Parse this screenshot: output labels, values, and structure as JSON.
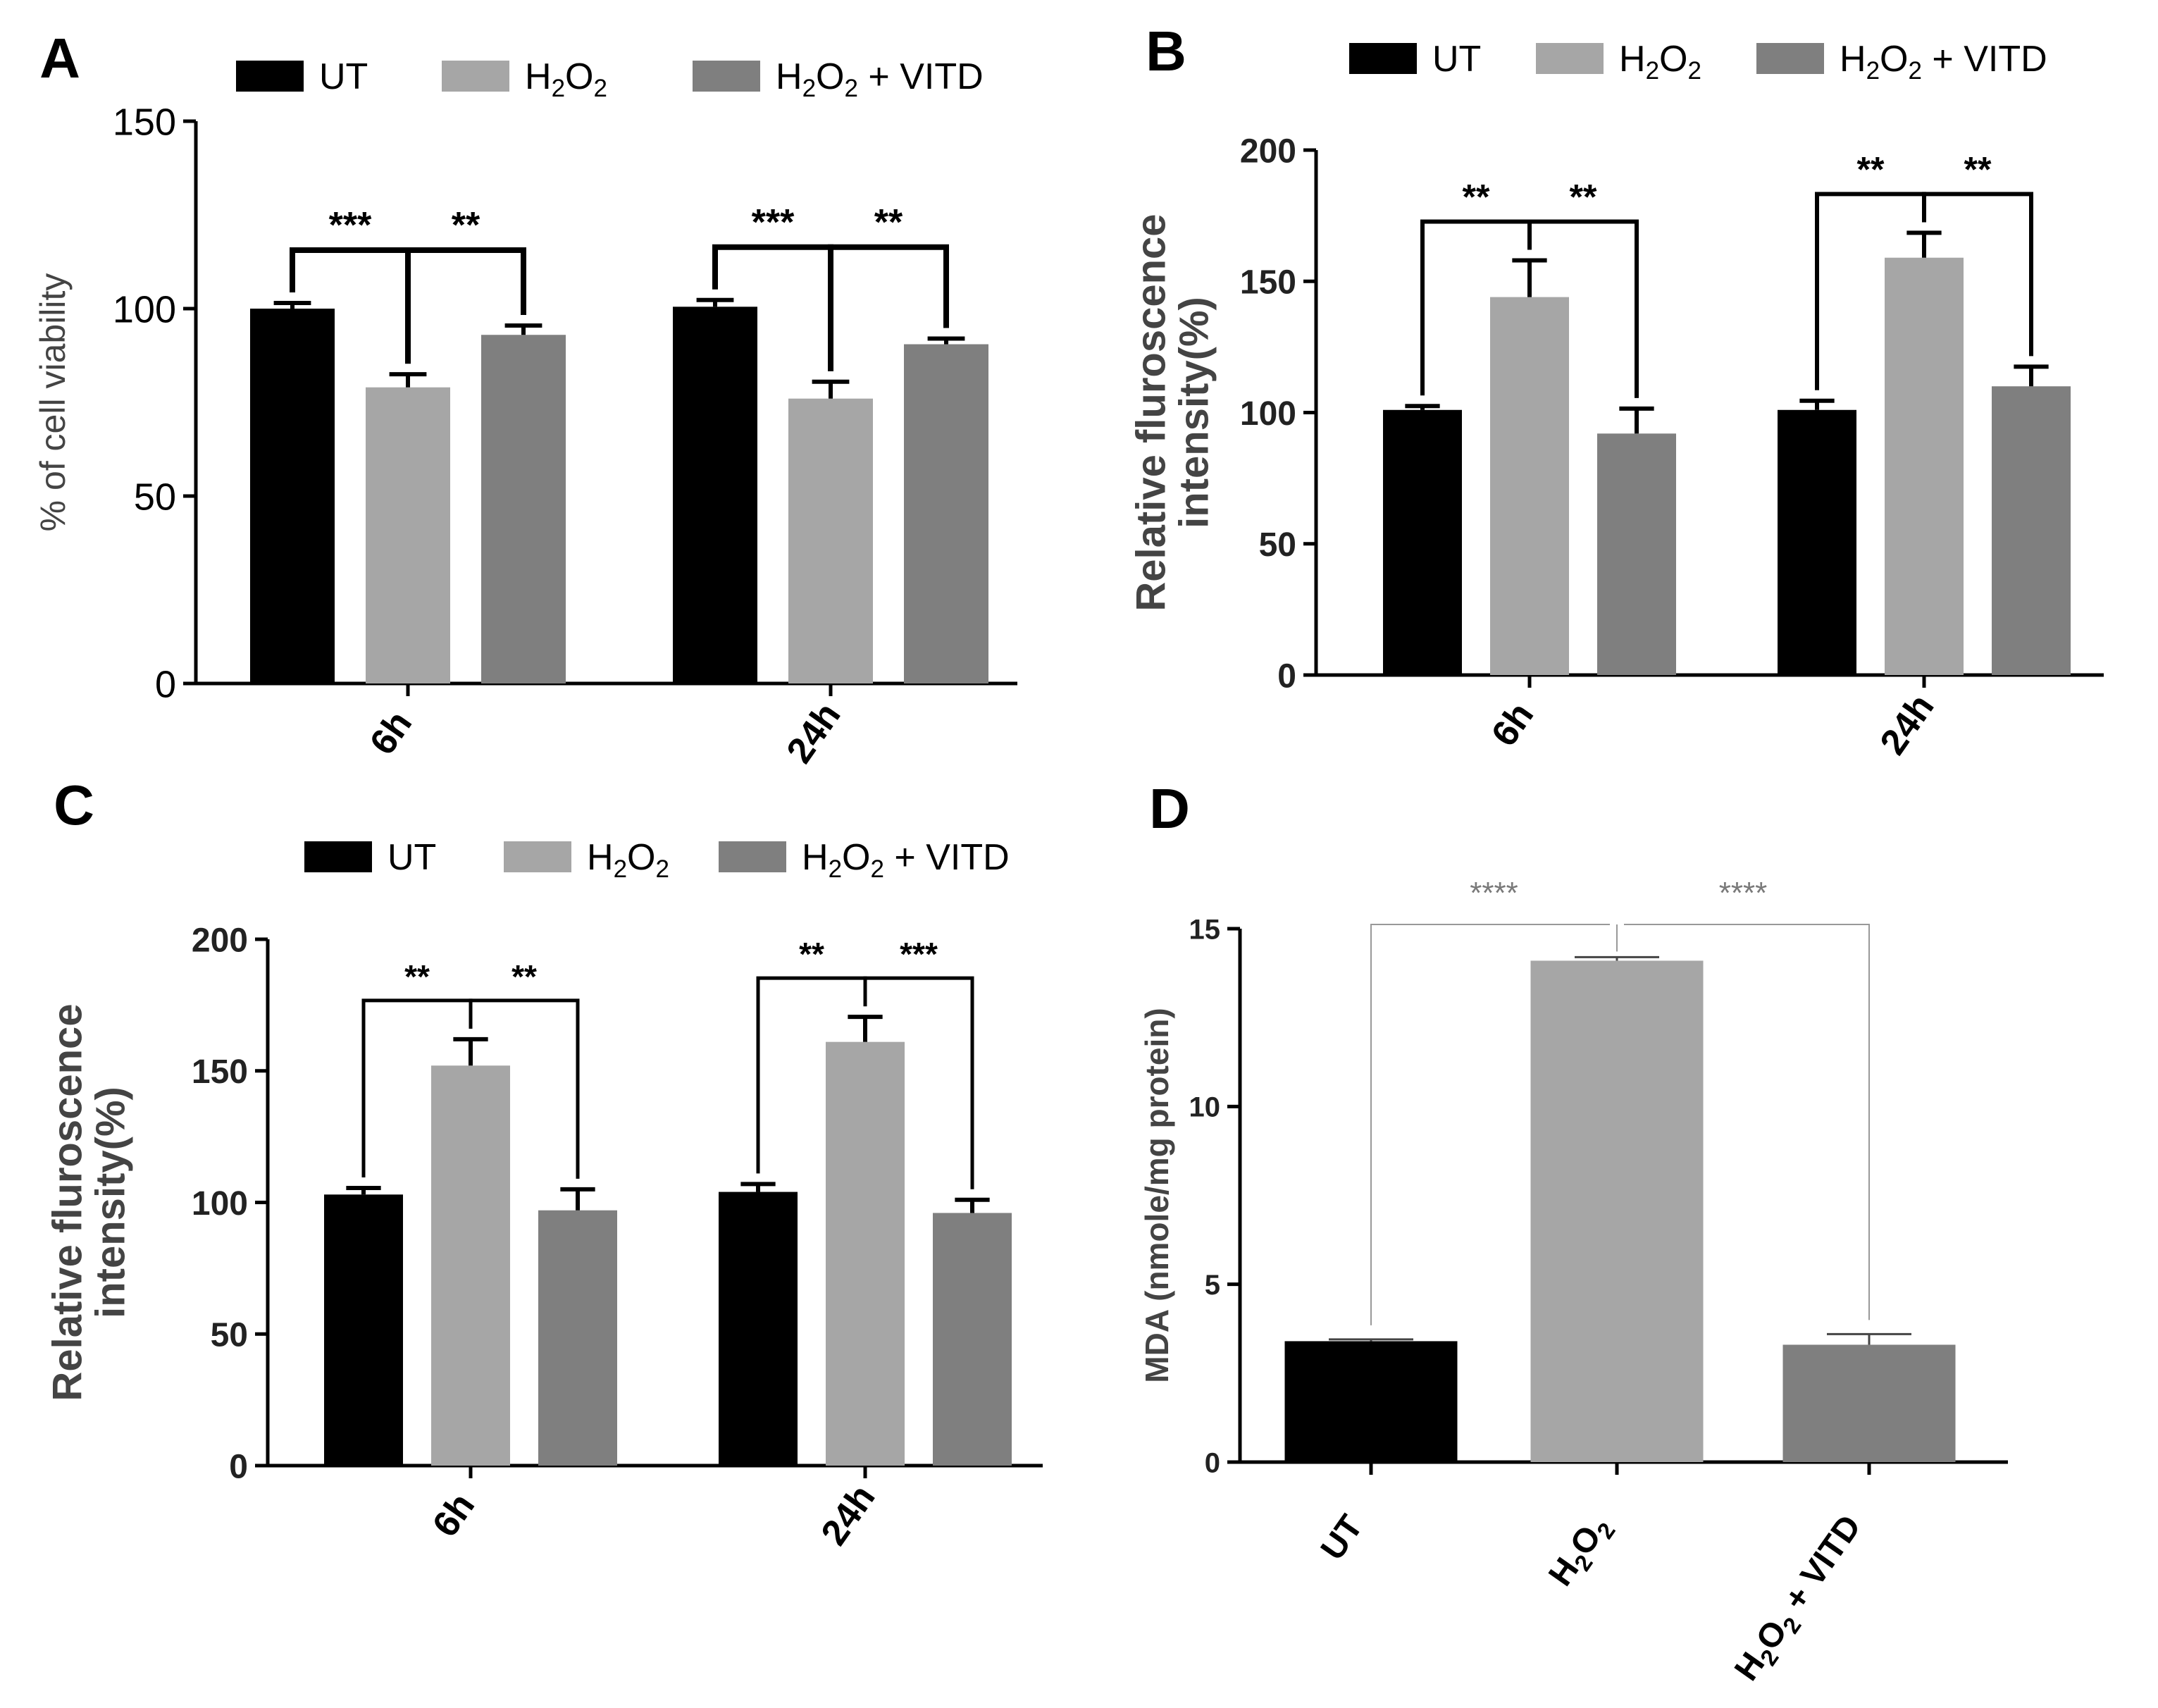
{
  "figure_description": "Four-panel bar chart figure (A-D) comparing UT, H2O2 and H2O2 + VITD groups",
  "colors": {
    "ut": "#000000",
    "h2o2": "#a6a6a6",
    "h2o2_vitd": "#7f7f7f",
    "panelD_sig": "#7a7a7a"
  },
  "legend": [
    "UT",
    "H2O2",
    "H2O2 + VITD"
  ],
  "chart_data": [
    {
      "panel": "A",
      "type": "bar",
      "categories": [
        "6h",
        "24h"
      ],
      "series": [
        {
          "name": "UT",
          "values": [
            100,
            100.5
          ],
          "errors": [
            1.5,
            1.8
          ]
        },
        {
          "name": "H2O2",
          "values": [
            79,
            76
          ],
          "errors": [
            3.5,
            4.5
          ]
        },
        {
          "name": "H2O2 + VITD",
          "values": [
            93,
            90.5
          ],
          "errors": [
            2.5,
            1.5
          ]
        }
      ],
      "ylabel": "% of cell viability",
      "xlabel": "",
      "ylim": [
        0,
        150
      ],
      "yticks": [
        0,
        50,
        100,
        150
      ],
      "significance": [
        {
          "category": "6h",
          "left": "UT",
          "right": "H2O2",
          "label": "***"
        },
        {
          "category": "6h",
          "left": "H2O2",
          "right": "H2O2 + VITD",
          "label": "**"
        },
        {
          "category": "24h",
          "left": "UT",
          "right": "H2O2",
          "label": "***"
        },
        {
          "category": "24h",
          "left": "H2O2",
          "right": "H2O2 + VITD",
          "label": "**"
        }
      ]
    },
    {
      "panel": "B",
      "type": "bar",
      "categories": [
        "6h",
        "24h"
      ],
      "series": [
        {
          "name": "UT",
          "values": [
            101,
            101
          ],
          "errors": [
            1.5,
            3.5
          ]
        },
        {
          "name": "H2O2",
          "values": [
            144,
            159
          ],
          "errors": [
            14,
            9.5
          ]
        },
        {
          "name": "H2O2 + VITD",
          "values": [
            92,
            110
          ],
          "errors": [
            9.5,
            7.5
          ]
        }
      ],
      "ylabel": "Relative fluroscence\nintensity(%)",
      "xlabel": "",
      "ylim": [
        0,
        200
      ],
      "yticks": [
        0,
        50,
        100,
        150,
        200
      ],
      "significance": [
        {
          "category": "6h",
          "left": "UT",
          "right": "H2O2",
          "label": "**"
        },
        {
          "category": "6h",
          "left": "H2O2",
          "right": "H2O2 + VITD",
          "label": "**"
        },
        {
          "category": "24h",
          "left": "UT",
          "right": "H2O2",
          "label": "**"
        },
        {
          "category": "24h",
          "left": "H2O2",
          "right": "H2O2 + VITD",
          "label": "**"
        }
      ]
    },
    {
      "panel": "C",
      "type": "bar",
      "categories": [
        "6h",
        "24h"
      ],
      "series": [
        {
          "name": "UT",
          "values": [
            103,
            104
          ],
          "errors": [
            2.5,
            3
          ]
        },
        {
          "name": "H2O2",
          "values": [
            152,
            161
          ],
          "errors": [
            10,
            9.5
          ]
        },
        {
          "name": "H2O2 + VITD",
          "values": [
            97,
            96
          ],
          "errors": [
            8,
            5
          ]
        }
      ],
      "ylabel": "Relative fluroscence\nintensity(%)",
      "xlabel": "",
      "ylim": [
        0,
        200
      ],
      "yticks": [
        0,
        50,
        100,
        150,
        200
      ],
      "significance": [
        {
          "category": "6h",
          "left": "UT",
          "right": "H2O2",
          "label": "**"
        },
        {
          "category": "6h",
          "left": "H2O2",
          "right": "H2O2 + VITD",
          "label": "**"
        },
        {
          "category": "24h",
          "left": "UT",
          "right": "H2O2",
          "label": "**"
        },
        {
          "category": "24h",
          "left": "H2O2",
          "right": "H2O2 + VITD",
          "label": "***"
        }
      ]
    },
    {
      "panel": "D",
      "type": "bar",
      "categories": [
        "UT",
        "H2O2",
        "H2O2 + VITD"
      ],
      "values": [
        3.4,
        14.1,
        3.3
      ],
      "errors": [
        0.05,
        0.1,
        0.3
      ],
      "ylabel": "MDA (nmole/mg protein)",
      "xlabel": "",
      "ylim": [
        0,
        15
      ],
      "yticks": [
        0,
        5,
        10,
        15
      ],
      "significance": [
        {
          "left": "UT",
          "right": "H2O2",
          "label": "****"
        },
        {
          "left": "H2O2",
          "right": "H2O2 + VITD",
          "label": "****"
        }
      ]
    }
  ]
}
